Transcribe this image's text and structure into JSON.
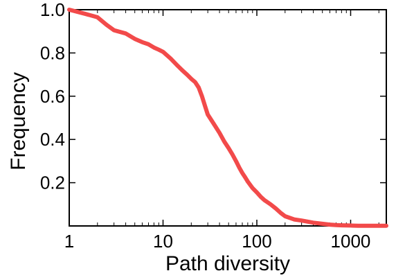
{
  "chart_data": {
    "type": "line",
    "title": "",
    "xlabel": "Path diversity",
    "ylabel": "Frequency",
    "xscale": "log",
    "xlim": [
      1,
      2400
    ],
    "ylim": [
      0,
      1.0
    ],
    "grid": false,
    "line_color": "#f24a4a",
    "x_ticks": [
      1,
      10,
      100,
      1000
    ],
    "x_tick_labels": [
      "1",
      "10",
      "100",
      "1000"
    ],
    "y_ticks": [
      0.2,
      0.4,
      0.6,
      0.8,
      1.0
    ],
    "y_tick_labels": [
      "0.2",
      "0.4",
      "0.6",
      "0.8",
      "1.0"
    ],
    "series": [
      {
        "x": [
          1,
          1.5,
          2,
          2.5,
          3,
          4,
          5,
          6,
          7,
          8,
          9,
          10,
          12,
          14,
          16,
          18,
          20,
          22,
          24,
          26,
          28,
          30,
          35,
          40,
          45,
          50,
          55,
          60,
          65,
          70,
          75,
          80,
          90,
          100,
          110,
          120,
          140,
          160,
          180,
          200,
          250,
          300,
          400,
          500,
          600,
          700,
          800,
          1000,
          1200,
          1500,
          2000,
          2400
        ],
        "y": [
          1.0,
          0.98,
          0.965,
          0.93,
          0.905,
          0.89,
          0.865,
          0.85,
          0.84,
          0.825,
          0.815,
          0.805,
          0.775,
          0.745,
          0.72,
          0.7,
          0.68,
          0.665,
          0.64,
          0.6,
          0.555,
          0.515,
          0.47,
          0.43,
          0.39,
          0.36,
          0.33,
          0.3,
          0.27,
          0.245,
          0.225,
          0.205,
          0.175,
          0.155,
          0.135,
          0.12,
          0.1,
          0.08,
          0.06,
          0.045,
          0.03,
          0.025,
          0.015,
          0.01,
          0.006,
          0.004,
          0.003,
          0.002,
          0.001,
          0.001,
          0.0005,
          0.0005
        ]
      }
    ]
  }
}
